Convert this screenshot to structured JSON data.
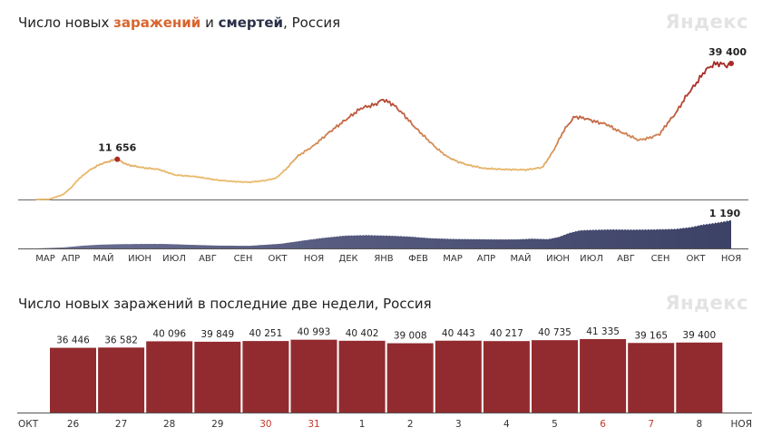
{
  "chart1": {
    "title_prefix": "Число новых ",
    "title_infections": "заражений",
    "title_and": " и ",
    "title_deaths": "смертей",
    "title_suffix": ", Россия",
    "logo": "Яндекс"
  },
  "chart2": {
    "title": "Число новых заражений в последние две недели, Россия",
    "logo": "Яндекс"
  },
  "colors": {
    "infections_low": "#e9bb6e",
    "infections_high": "#a92b27",
    "deaths": "#3c4166",
    "bars": "#922b2f",
    "weekend": "#c0392b"
  },
  "chart_data": [
    {
      "type": "line",
      "name": "new-infections",
      "months": [
        "МАР",
        "АПР",
        "МАЙ",
        "ИЮН",
        "ИЮЛ",
        "АВГ",
        "СЕН",
        "ОКТ",
        "НОЯ",
        "ДЕК",
        "ЯНВ",
        "ФЕВ",
        "МАР",
        "АПР",
        "МАЙ",
        "ИЮН",
        "ИЮЛ",
        "АВГ",
        "СЕН",
        "ОКТ",
        "НОЯ"
      ],
      "x_unit": "days since 2020-03-01",
      "points": [
        [
          0,
          0
        ],
        [
          12,
          60
        ],
        [
          25,
          1400
        ],
        [
          33,
          3500
        ],
        [
          40,
          6000
        ],
        [
          50,
          8500
        ],
        [
          60,
          10200
        ],
        [
          72,
          11400
        ],
        [
          76,
          11656
        ],
        [
          85,
          10100
        ],
        [
          100,
          9200
        ],
        [
          115,
          8700
        ],
        [
          130,
          7100
        ],
        [
          150,
          6600
        ],
        [
          170,
          5600
        ],
        [
          185,
          5200
        ],
        [
          200,
          5000
        ],
        [
          215,
          5500
        ],
        [
          225,
          6200
        ],
        [
          235,
          9000
        ],
        [
          245,
          12500
        ],
        [
          260,
          15500
        ],
        [
          275,
          19500
        ],
        [
          290,
          23000
        ],
        [
          305,
          26500
        ],
        [
          318,
          27500
        ],
        [
          325,
          29000
        ],
        [
          335,
          27500
        ],
        [
          345,
          24500
        ],
        [
          355,
          21000
        ],
        [
          365,
          18000
        ],
        [
          375,
          15000
        ],
        [
          385,
          12500
        ],
        [
          395,
          11000
        ],
        [
          405,
          10000
        ],
        [
          420,
          9000
        ],
        [
          440,
          8700
        ],
        [
          460,
          8600
        ],
        [
          475,
          9300
        ],
        [
          485,
          14000
        ],
        [
          495,
          20000
        ],
        [
          505,
          24000
        ],
        [
          515,
          23500
        ],
        [
          525,
          22500
        ],
        [
          535,
          21800
        ],
        [
          545,
          20000
        ],
        [
          555,
          18700
        ],
        [
          565,
          17200
        ],
        [
          575,
          17800
        ],
        [
          585,
          19000
        ],
        [
          592,
          22000
        ],
        [
          600,
          25000
        ],
        [
          610,
          30000
        ],
        [
          620,
          34000
        ],
        [
          628,
          37500
        ],
        [
          636,
          39200
        ],
        [
          642,
          39400
        ],
        [
          648,
          38700
        ],
        [
          652,
          39400
        ]
      ],
      "peak_labels": [
        {
          "x": 76,
          "y": 11656,
          "text": "11 656"
        },
        {
          "x": 652,
          "y": 39400,
          "text": "39 400"
        }
      ],
      "ylim": [
        0,
        42000
      ],
      "xlim": [
        -12,
        665
      ]
    },
    {
      "type": "area",
      "name": "new-deaths",
      "x_unit": "days since 2020-03-01",
      "points": [
        [
          0,
          0
        ],
        [
          25,
          40
        ],
        [
          45,
          120
        ],
        [
          60,
          160
        ],
        [
          80,
          180
        ],
        [
          100,
          190
        ],
        [
          120,
          190
        ],
        [
          140,
          160
        ],
        [
          170,
          120
        ],
        [
          200,
          110
        ],
        [
          230,
          200
        ],
        [
          250,
          330
        ],
        [
          270,
          450
        ],
        [
          290,
          540
        ],
        [
          310,
          560
        ],
        [
          330,
          540
        ],
        [
          350,
          500
        ],
        [
          370,
          430
        ],
        [
          390,
          400
        ],
        [
          410,
          390
        ],
        [
          430,
          380
        ],
        [
          450,
          380
        ],
        [
          465,
          410
        ],
        [
          480,
          390
        ],
        [
          490,
          480
        ],
        [
          500,
          650
        ],
        [
          510,
          760
        ],
        [
          520,
          780
        ],
        [
          540,
          800
        ],
        [
          560,
          790
        ],
        [
          580,
          800
        ],
        [
          600,
          820
        ],
        [
          615,
          900
        ],
        [
          625,
          1000
        ],
        [
          635,
          1060
        ],
        [
          645,
          1130
        ],
        [
          652,
          1190
        ]
      ],
      "end_label": {
        "x": 652,
        "y": 1190,
        "text": "1 190"
      },
      "ylim": [
        0,
        1290
      ]
    },
    {
      "type": "bar",
      "name": "last-two-weeks",
      "categories": [
        "26",
        "27",
        "28",
        "29",
        "30",
        "31",
        "1",
        "2",
        "3",
        "4",
        "5",
        "6",
        "7",
        "8"
      ],
      "weekend": [
        false,
        false,
        false,
        false,
        true,
        true,
        false,
        false,
        false,
        false,
        false,
        true,
        true,
        false
      ],
      "values": [
        36446,
        36582,
        40096,
        39849,
        40251,
        40993,
        40402,
        39008,
        40443,
        40217,
        40735,
        41335,
        39165,
        39400
      ],
      "value_labels": [
        "36 446",
        "36 582",
        "40 096",
        "39 849",
        "40 251",
        "40 993",
        "40 402",
        "39 008",
        "40 443",
        "40 217",
        "40 735",
        "41 335",
        "39 165",
        "39 400"
      ],
      "axis_left_label": "ОКТ",
      "axis_right_label": "НОЯ",
      "ylim": [
        0,
        46500
      ]
    }
  ]
}
